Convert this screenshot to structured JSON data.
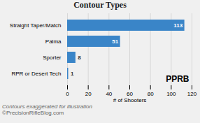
{
  "chart_data": {
    "type": "bar",
    "orientation": "horizontal",
    "title": "Contour Types",
    "categories": [
      "Straight Taper/Match",
      "Palma",
      "Sporter",
      "RPR or Desert Tech"
    ],
    "values": [
      113,
      51,
      8,
      1
    ],
    "color": "#3a85c8",
    "data_labels": true,
    "xlabel": "# of Shooters",
    "xlim": [
      0,
      120
    ],
    "xticks": [
      0,
      20,
      40,
      60,
      80,
      100,
      120
    ],
    "grid": true,
    "annotations": [
      "PPRB",
      "Contours exaggerated for illustration",
      "©PrecisionRifleBlog.com"
    ]
  }
}
